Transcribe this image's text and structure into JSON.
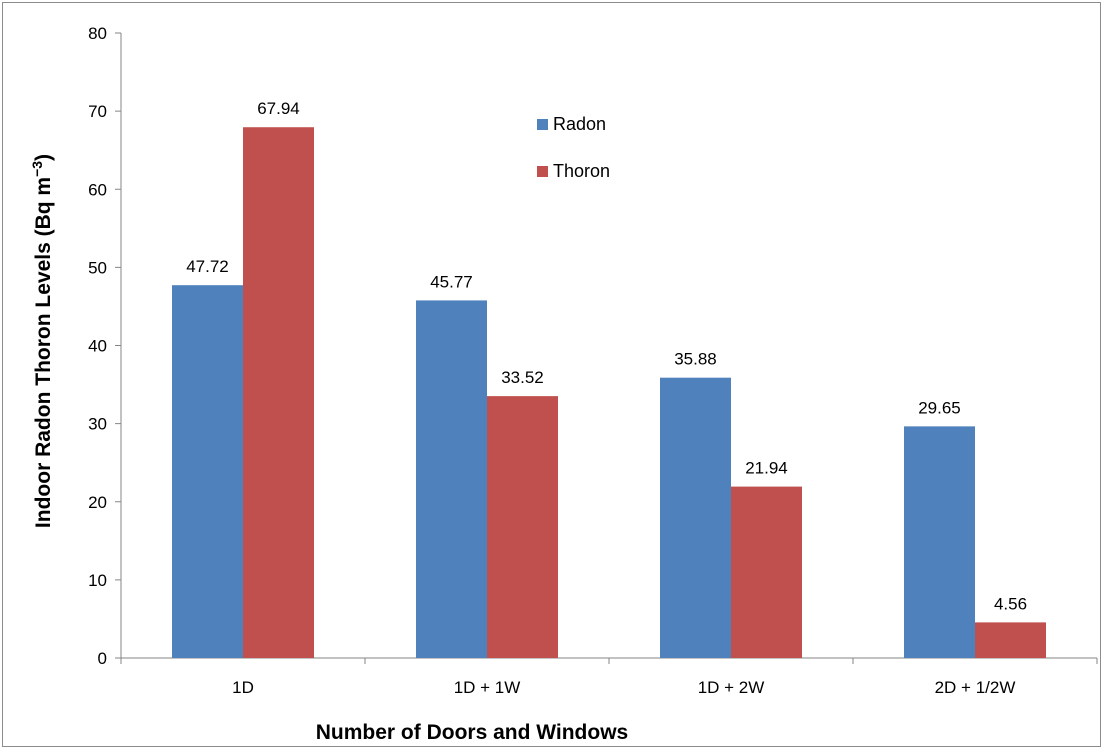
{
  "chart_data": {
    "type": "bar",
    "title": "",
    "xlabel": "Number of Doors and Windows",
    "ylabel_main": "Indoor Radon Thoron Levels (Bq m",
    "ylabel_sup": "−3",
    "ylabel_close": ")",
    "categories": [
      "1D",
      "1D + 1W",
      "1D + 2W",
      "2D + 1/2W"
    ],
    "series": [
      {
        "name": "Radon",
        "color": "#4f81bd",
        "values": [
          47.72,
          45.77,
          35.88,
          29.65
        ],
        "labels": [
          "47.72",
          "45.77",
          "35.88",
          "29.65"
        ]
      },
      {
        "name": "Thoron",
        "color": "#c0504d",
        "values": [
          67.94,
          33.52,
          21.94,
          4.56
        ],
        "labels": [
          "67.94",
          "33.52",
          "21.94",
          "4.56"
        ]
      }
    ],
    "ylim": [
      0,
      80
    ],
    "yticks": [
      0,
      10,
      20,
      30,
      40,
      50,
      60,
      70,
      80
    ],
    "grid": false,
    "legend_position": "top-center"
  }
}
